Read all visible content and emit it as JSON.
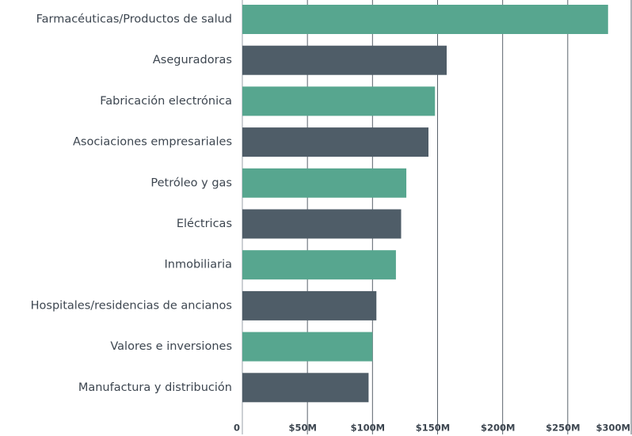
{
  "chart_data": {
    "type": "bar",
    "orientation": "horizontal",
    "categories": [
      "Farmacéuticas/Productos de salud",
      "Aseguradoras",
      "Fabricación electrónica",
      "Asociaciones empresariales",
      "Petróleo y gas",
      "Eléctricas",
      "Inmobiliaria",
      "Hospitales/residencias de ancianos",
      "Valores e inversiones",
      "Manufactura y distribución"
    ],
    "values": [
      281,
      157,
      148,
      143,
      126,
      122,
      118,
      103,
      100,
      97
    ],
    "colors": [
      "#57a68f",
      "#4f5d68",
      "#57a68f",
      "#4f5d68",
      "#57a68f",
      "#4f5d68",
      "#57a68f",
      "#4f5d68",
      "#57a68f",
      "#4f5d68"
    ],
    "xlim": [
      0,
      300
    ],
    "xticks": [
      0,
      {
        "value": 50,
        "label": "$50M"
      },
      {
        "value": 100,
        "label": "$100M"
      },
      {
        "value": 150,
        "label": "$150M"
      },
      {
        "value": 200,
        "label": "$200M"
      },
      {
        "value": 250,
        "label": "$250M"
      },
      {
        "value": 300,
        "label": "$300M"
      }
    ],
    "grid": true
  }
}
